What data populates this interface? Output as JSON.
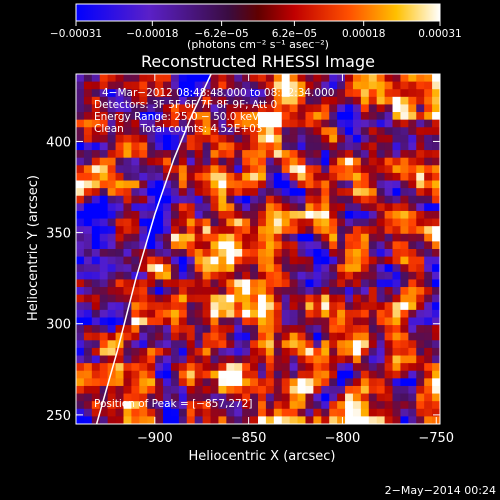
{
  "chart_data": {
    "type": "heatmap",
    "title": "Reconstructed RHESSI Image",
    "xlabel": "Heliocentric X (arcsec)",
    "ylabel": "Heliocentric Y (arcsec)",
    "xlim": [
      -942,
      -748
    ],
    "ylim": [
      245,
      437
    ],
    "x_ticks": [
      -900,
      -850,
      -800,
      -750
    ],
    "x_tick_labels": [
      "−900",
      "−850",
      "−800",
      "−750"
    ],
    "y_ticks": [
      250,
      300,
      350,
      400
    ],
    "y_tick_labels": [
      "250",
      "300",
      "350",
      "400"
    ],
    "colorbar": {
      "ticks": [
        -0.00031,
        -0.00018,
        -6.2e-05,
        6.2e-05,
        0.00018,
        0.00031
      ],
      "tick_labels": [
        "−0.00031",
        "−0.00018",
        "−6.2e−05",
        "6.2e−05",
        "0.00018",
        "0.00031"
      ],
      "unit_label": "(photons cm⁻² s⁻¹ asec⁻²)",
      "range": [
        -0.00031,
        0.00031
      ],
      "colors": [
        "#0000ff",
        "#5a20c8",
        "#4a1060",
        "#b00000",
        "#ff4000",
        "#ffb000",
        "#ffffff"
      ]
    },
    "annotations": [
      "4−Mar−2012 08:48:48.000 to 08:52:34.000",
      "Detectors: 3F 5F 6F 7F 8F 9F; Att 0",
      "Energy Range: 25.0 − 50.0 keV",
      "Clean     Total counts: 4.52E+03"
    ],
    "peak_label": "Position of Peak = [−857,272]",
    "peak": [
      -857,
      272
    ],
    "limb_curve": [
      [
        -931,
        245
      ],
      [
        -920,
        285
      ],
      [
        -910,
        325
      ],
      [
        -900,
        360
      ],
      [
        -890,
        390
      ],
      [
        -880,
        415
      ],
      [
        -870,
        437
      ]
    ],
    "grid": false
  },
  "footer": {
    "timestamp": "2−May−2014 00:24"
  }
}
